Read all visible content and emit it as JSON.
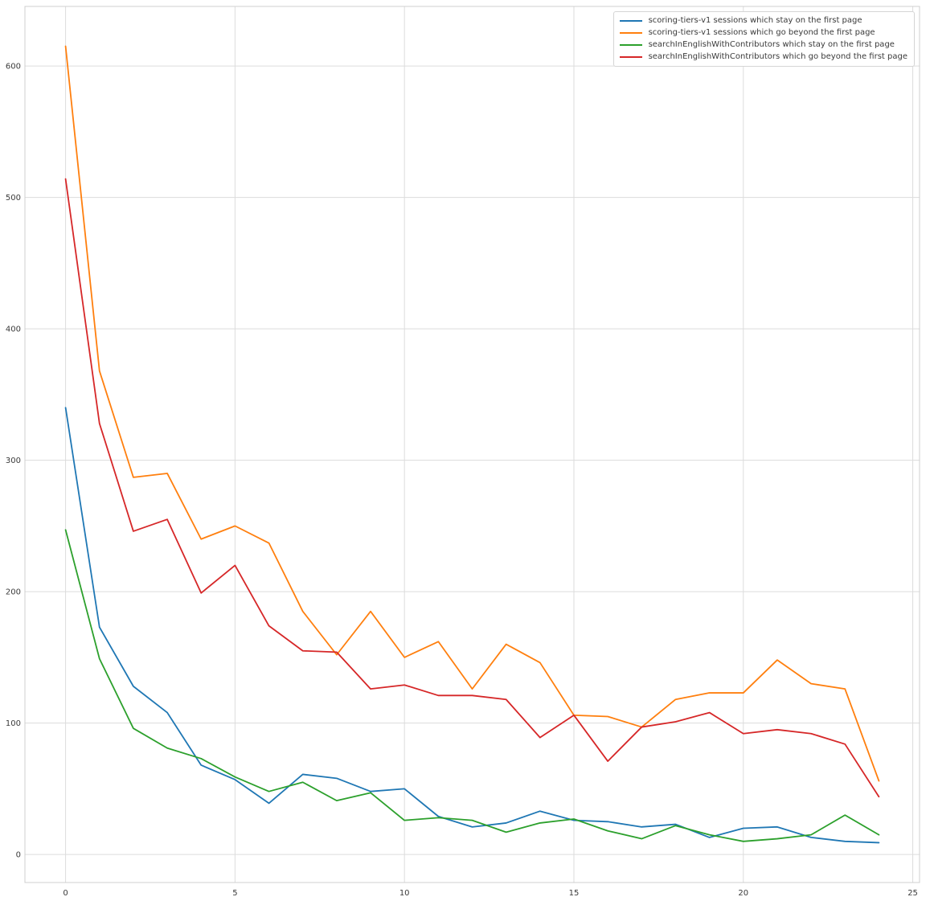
{
  "figure": {
    "background_color": "#ffffff",
    "grid_color": "#dcdcdc",
    "spine_color": "#cfcfcf",
    "tick_label_color": "#3a3a3a"
  },
  "legend": {
    "position": "upper right",
    "entries": [
      "scoring-tiers-v1 sessions which stay on the first page",
      "scoring-tiers-v1 sessions which go beyond the first page",
      "searchInEnglishWithContributors which stay on the first page",
      "searchInEnglishWithContributors which go beyond the first page"
    ]
  },
  "chart_data": {
    "type": "line",
    "title": "",
    "xlabel": "",
    "ylabel": "",
    "grid": true,
    "legend_position": "upper right",
    "x": [
      0,
      1,
      2,
      3,
      4,
      5,
      6,
      7,
      8,
      9,
      10,
      11,
      12,
      13,
      14,
      15,
      16,
      17,
      18,
      19,
      20,
      21,
      22,
      23,
      24
    ],
    "xticks": [
      0,
      5,
      10,
      15,
      20,
      25
    ],
    "yticks": [
      0,
      100,
      200,
      300,
      400,
      500,
      600
    ],
    "xlim": [
      -1.2,
      25.2
    ],
    "ylim": [
      -21.3,
      645.3
    ],
    "series": [
      {
        "name": "scoring-tiers-v1 sessions which stay on the first page",
        "color": "#1f77b4",
        "values": [
          340,
          173,
          128,
          108,
          68,
          57,
          39,
          61,
          58,
          48,
          50,
          29,
          21,
          24,
          33,
          26,
          25,
          21,
          23,
          13,
          20,
          21,
          13,
          10,
          9
        ]
      },
      {
        "name": "scoring-tiers-v1 sessions which go beyond the first page",
        "color": "#ff7f0e",
        "values": [
          615,
          368,
          287,
          290,
          240,
          250,
          237,
          185,
          152,
          185,
          150,
          162,
          126,
          160,
          146,
          106,
          105,
          97,
          118,
          123,
          123,
          148,
          130,
          126,
          56
        ]
      },
      {
        "name": "searchInEnglishWithContributors which stay on the first page",
        "color": "#2ca02c",
        "values": [
          247,
          149,
          96,
          81,
          73,
          59,
          48,
          55,
          41,
          47,
          26,
          28,
          26,
          17,
          24,
          27,
          18,
          12,
          22,
          15,
          10,
          12,
          15,
          30,
          15
        ]
      },
      {
        "name": "searchInEnglishWithContributors which go beyond the first page",
        "color": "#d62728",
        "values": [
          514,
          328,
          246,
          255,
          199,
          220,
          174,
          155,
          154,
          126,
          129,
          121,
          121,
          118,
          89,
          106,
          71,
          97,
          101,
          108,
          92,
          95,
          92,
          84,
          44
        ]
      }
    ]
  }
}
